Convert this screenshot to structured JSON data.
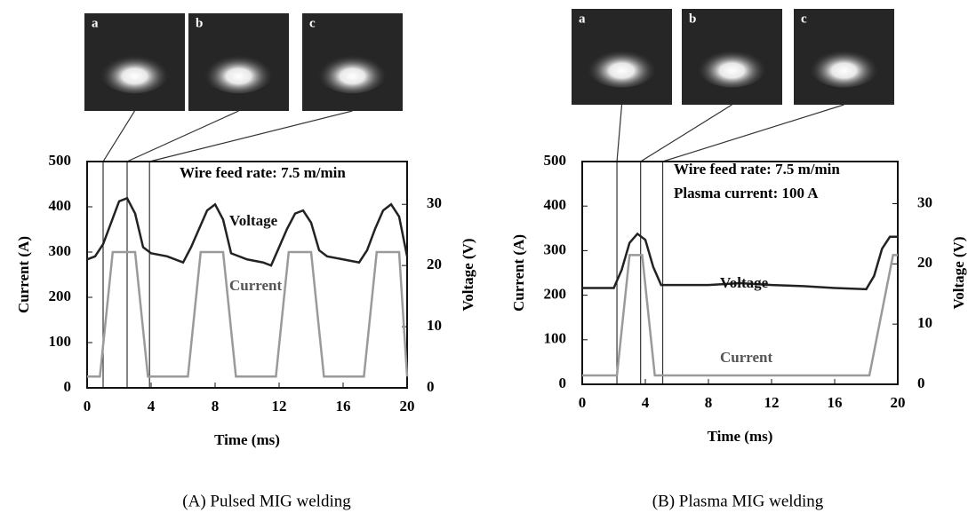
{
  "chart_data": [
    {
      "type": "line",
      "caption": "(A) Pulsed MIG welding",
      "xlabel": "Time  (ms)",
      "ylabel": "Current  (A)",
      "y2label": "Voltage  (V)",
      "annotations": [
        "Wire feed rate: 7.5 m/min"
      ],
      "xlim": [
        0,
        20
      ],
      "xticks": [
        0,
        4,
        8,
        12,
        16,
        20
      ],
      "ylim": [
        0,
        500
      ],
      "yticks": [
        0,
        100,
        200,
        300,
        400,
        500
      ],
      "y2lim": [
        0,
        37
      ],
      "y2ticks": [
        0,
        10,
        20,
        30
      ],
      "photos": {
        "labels": [
          "a",
          "b",
          "c"
        ],
        "times": [
          1.0,
          2.5,
          3.9
        ]
      },
      "series": [
        {
          "name": "Voltage",
          "color": "#222222",
          "axis": "y2",
          "x": [
            0,
            0.5,
            1,
            1.5,
            2,
            2.5,
            3,
            3.5,
            4,
            5,
            6,
            6.5,
            7,
            7.5,
            8,
            8.5,
            9,
            10,
            11,
            11.5,
            12,
            12.5,
            13,
            13.5,
            14,
            14.5,
            15,
            16,
            17,
            17.5,
            18,
            18.5,
            19,
            19.5,
            20
          ],
          "values": [
            21,
            21.5,
            23.5,
            27,
            30.5,
            31,
            28.5,
            23,
            22,
            21.5,
            20.5,
            23,
            26,
            29,
            30,
            27.5,
            22,
            21,
            20.5,
            20,
            23,
            26,
            28.5,
            29,
            27,
            22.5,
            21.5,
            21,
            20.5,
            22.5,
            26,
            29,
            30,
            28,
            21.5
          ]
        },
        {
          "name": "Current",
          "color": "#9a9a9a",
          "x": [
            0,
            0.8,
            1.6,
            3.0,
            3.8,
            6.3,
            7.1,
            8.5,
            9.3,
            11.8,
            12.6,
            14.0,
            14.8,
            17.3,
            18.1,
            19.5,
            20
          ],
          "values": [
            25,
            25,
            300,
            300,
            25,
            25,
            300,
            300,
            25,
            25,
            300,
            300,
            25,
            25,
            300,
            300,
            25
          ]
        }
      ]
    },
    {
      "type": "line",
      "caption": "(B) Plasma MIG welding",
      "xlabel": "Time  (ms)",
      "ylabel": "Current  (A)",
      "y2label": "Voltage  (V)",
      "annotations": [
        "Wire feed rate: 7.5 m/min",
        "Plasma current: 100 A"
      ],
      "xlim": [
        0,
        20
      ],
      "xticks": [
        0,
        4,
        8,
        12,
        16,
        20
      ],
      "ylim": [
        0,
        500
      ],
      "yticks": [
        0,
        100,
        200,
        300,
        400,
        500
      ],
      "y2lim": [
        0,
        37
      ],
      "y2ticks": [
        0,
        10,
        20,
        30
      ],
      "photos": {
        "labels": [
          "a",
          "b",
          "c"
        ],
        "times": [
          2.2,
          3.7,
          5.1
        ]
      },
      "series": [
        {
          "name": "Voltage",
          "color": "#222222",
          "axis": "y2",
          "x": [
            0,
            2,
            2.5,
            3,
            3.5,
            4,
            4.5,
            5,
            6,
            8,
            10,
            12,
            14,
            16,
            18,
            18.5,
            19,
            19.5,
            20
          ],
          "values": [
            16,
            16,
            19,
            23.5,
            25,
            24,
            19.5,
            16.5,
            16.5,
            16.5,
            16.8,
            16.5,
            16.3,
            16,
            15.8,
            18,
            22.5,
            24.5,
            24.5
          ]
        },
        {
          "name": "Current",
          "color": "#9a9a9a",
          "x": [
            0,
            2.2,
            3.0,
            3.8,
            4.6,
            18.2,
            19.7,
            20
          ],
          "values": [
            20,
            20,
            290,
            290,
            20,
            20,
            290,
            290
          ]
        }
      ]
    }
  ]
}
